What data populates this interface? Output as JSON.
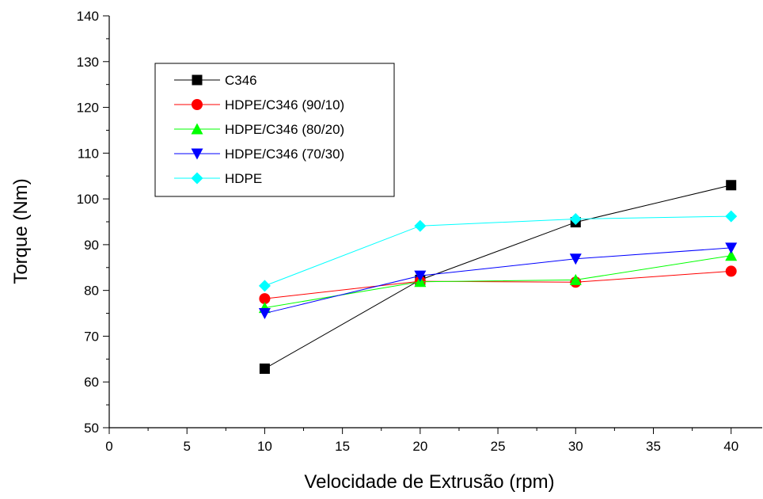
{
  "chart_data": {
    "type": "line",
    "xlabel": "Velocidade de Extrusão (rpm)",
    "ylabel": "Torque (Nm)",
    "xlim": [
      0,
      42
    ],
    "ylim": [
      50,
      140
    ],
    "xticks": [
      0,
      5,
      10,
      15,
      20,
      25,
      30,
      35,
      40
    ],
    "yticks": [
      50,
      60,
      70,
      80,
      90,
      100,
      110,
      120,
      130,
      140
    ],
    "legend_position": "top-left",
    "grid": false,
    "x": [
      10,
      20,
      30,
      40
    ],
    "series": [
      {
        "name": "C346",
        "values": [
          62.9,
          82.3,
          94.9,
          103.0
        ],
        "color": "#000000",
        "marker": "square"
      },
      {
        "name": "HDPE/C346 (90/10)",
        "values": [
          78.2,
          82.0,
          81.8,
          84.2
        ],
        "color": "#ff0000",
        "marker": "circle"
      },
      {
        "name": "HDPE/C346 (80/20)",
        "values": [
          76.2,
          81.9,
          82.3,
          87.6
        ],
        "color": "#00ff00",
        "marker": "triangle-up"
      },
      {
        "name": "HDPE/C346 (70/30)",
        "values": [
          75.0,
          83.2,
          86.9,
          89.3
        ],
        "color": "#0000ff",
        "marker": "triangle-down"
      },
      {
        "name": "HDPE",
        "values": [
          81.0,
          94.1,
          95.6,
          96.2
        ],
        "color": "#00ffff",
        "marker": "diamond"
      }
    ]
  }
}
